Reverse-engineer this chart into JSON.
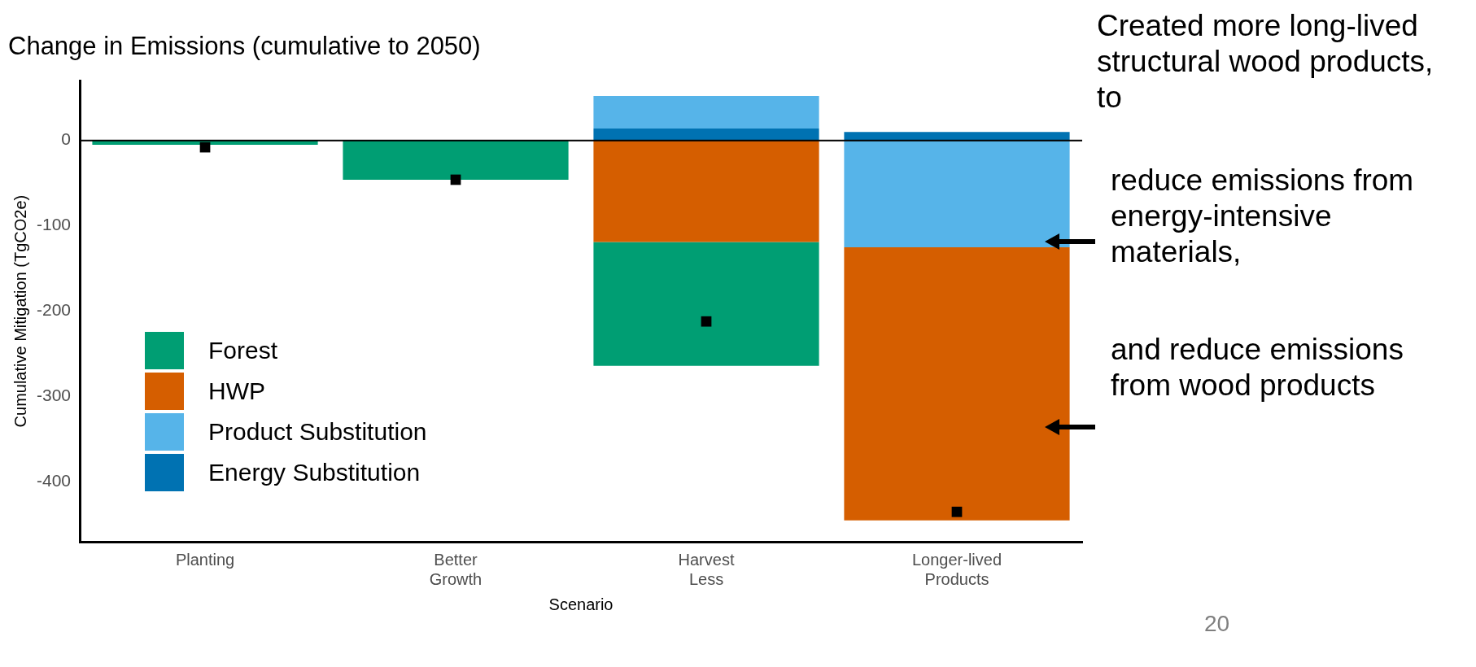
{
  "chart_data": {
    "type": "bar",
    "title": "Change in Emissions (cumulative to 2050)",
    "xlabel": "Scenario",
    "ylabel": "Cumulative Mitigation (TgCO2e)",
    "categories": [
      "Planting",
      "Better Growth",
      "Harvest Less",
      "Longer-lived Products"
    ],
    "stacked": true,
    "series": [
      {
        "name": "Energy Substitution",
        "color": "#0072b2",
        "values": [
          0,
          0,
          14,
          10
        ]
      },
      {
        "name": "Product Substitution",
        "color": "#56b4e9",
        "values": [
          0,
          0,
          38,
          -125
        ]
      },
      {
        "name": "HWP",
        "color": "#d55e00",
        "values": [
          0,
          0,
          -119,
          -320
        ]
      },
      {
        "name": "Forest",
        "color": "#009e73",
        "values": [
          -5,
          -46,
          -145,
          0
        ]
      },
      {
        "type": "scatter",
        "color": "#000000",
        "marker": "square",
        "x": [
          "Planting",
          "Better Growth",
          "Harvest Less",
          "Longer-lived Products"
        ],
        "values": [
          -8,
          -46,
          -212,
          -435
        ]
      }
    ],
    "ylim": [
      -470,
      70
    ],
    "yticks": [
      -400,
      -300,
      -200,
      -100,
      0
    ],
    "ref_lines": [
      {
        "axis": "y",
        "value": 0,
        "label": null,
        "color": "#000000"
      }
    ],
    "grid": false,
    "legend": "bottom left",
    "annotations": [
      "Created more long-lived structural wood products, to",
      "reduce emissions from energy-intensive materials,",
      "and reduce emissions from wood products",
      "20"
    ]
  }
}
